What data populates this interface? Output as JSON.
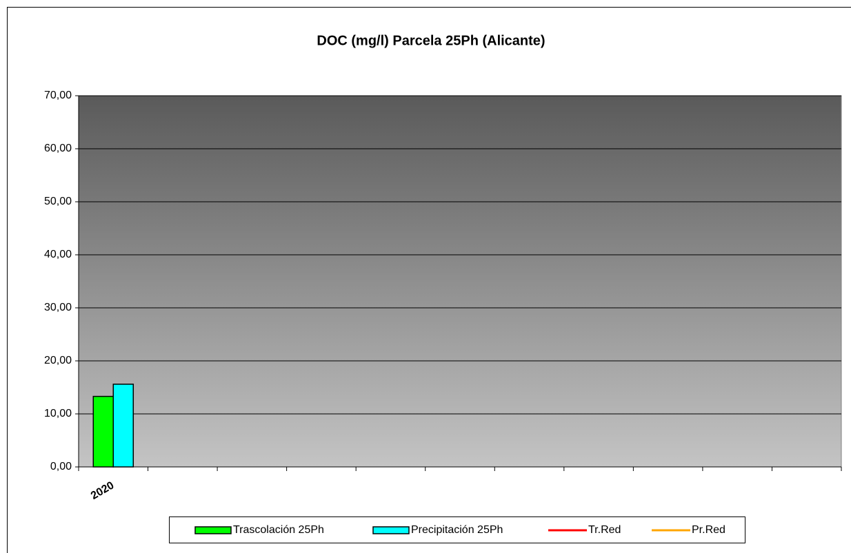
{
  "chart_data": {
    "type": "bar",
    "title": "DOC (mg/l) Parcela 25Ph (Alicante)",
    "categories": [
      "2020",
      null,
      null,
      null,
      null,
      null,
      null,
      null,
      null,
      null,
      null
    ],
    "series": [
      {
        "name": "Trascolación  25Ph",
        "color": "#00ff00",
        "type": "bar",
        "values": [
          13.3,
          null,
          null,
          null,
          null,
          null,
          null,
          null,
          null,
          null,
          null
        ]
      },
      {
        "name": "Precipitación 25Ph",
        "color": "#00ffff",
        "type": "bar",
        "values": [
          15.6,
          null,
          null,
          null,
          null,
          null,
          null,
          null,
          null,
          null,
          null
        ]
      },
      {
        "name": "Tr.Red",
        "color": "#ff0000",
        "type": "line",
        "values": [
          null,
          null,
          null,
          null,
          null,
          null,
          null,
          null,
          null,
          null,
          null
        ]
      },
      {
        "name": "Pr.Red",
        "color": "#ffa500",
        "type": "line",
        "values": [
          null,
          null,
          null,
          null,
          null,
          null,
          null,
          null,
          null,
          null,
          null
        ]
      }
    ],
    "ylim": [
      0,
      70
    ],
    "yticks": [
      {
        "value": 0,
        "label": "0,00"
      },
      {
        "value": 10,
        "label": "10,00"
      },
      {
        "value": 20,
        "label": "20,00"
      },
      {
        "value": 30,
        "label": "30,00"
      },
      {
        "value": 40,
        "label": "40,00"
      },
      {
        "value": 50,
        "label": "50,00"
      },
      {
        "value": 60,
        "label": "60,00"
      },
      {
        "value": 70,
        "label": "70,00"
      }
    ],
    "grid": true,
    "legend": "bottom"
  }
}
